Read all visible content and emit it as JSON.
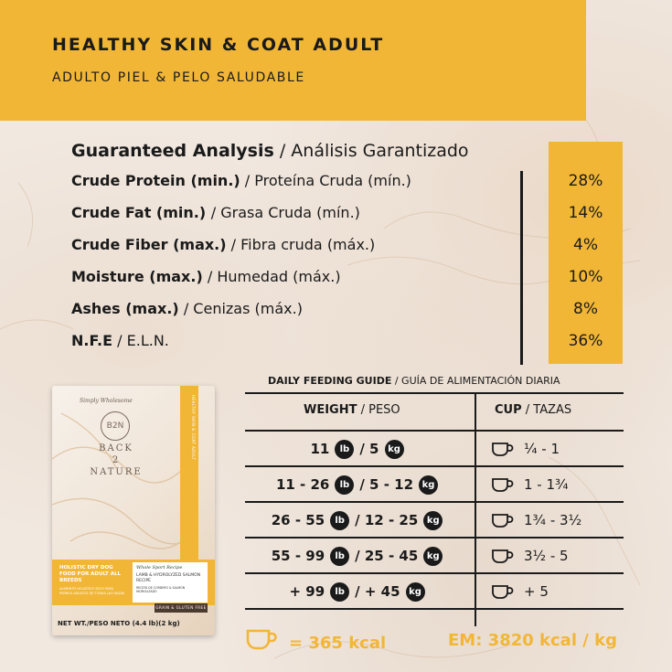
{
  "header": {
    "title": "HEALTHY SKIN & COAT ADULT",
    "subtitle": "ADULTO PIEL & PELO SALUDABLE"
  },
  "analysis": {
    "title_en": "Guaranteed Analysis",
    "title_es": " / Análisis Garantizado",
    "rows": [
      {
        "en": "Crude Protein  (min.)",
        "es": " / Proteína Cruda (mín.)",
        "value": "28%"
      },
      {
        "en": "Crude Fat (min.) ",
        "es": " / Grasa Cruda (mín.)",
        "value": "14%"
      },
      {
        "en": "Crude Fiber (max.)",
        "es": " / Fibra cruda (máx.)",
        "value": "4%"
      },
      {
        "en": "Moisture (max.)",
        "es": " / Humedad (máx.)",
        "value": "10%"
      },
      {
        "en": "Ashes  (max.)",
        "es": " / Cenizas (máx.)",
        "value": "8%"
      },
      {
        "en": "N.F.E",
        "es": " / E.L.N.",
        "value": "36%"
      }
    ]
  },
  "bag": {
    "script": "Simply Wholesome",
    "logo": "B2N",
    "brand_line1": "BACK",
    "brand_line2": "2",
    "brand_line3": "NATURE",
    "side_text": "HEALTHY SKIN & COAT ADULT",
    "band_left": "HOLISTIC DRY DOG FOOD FOR ADULT ALL BREEDS",
    "band_left_es": "ALIMENTO HOLÍSTICO SECO PARA PERROS ADULTOS DE TODAS LAS RAZAS",
    "band_right_script": "Whole Sport Recipe",
    "band_right": "LAMB & HYDROLYZED SALMON RECIPE",
    "band_right_es": "RECETA DE CORDERO & SALMÓN HIDROLIZADO",
    "badge": "GRAIN & GLUTEN FREE",
    "net": "NET WT./PESO NETO (4.4 lb)(2 kg)"
  },
  "feeding": {
    "title_en": "DAILY FEEDING GUIDE",
    "title_es": " / GUÍA DE ALIMENTACIÓN DIARIA",
    "weight_head_en": "WEIGHT",
    "weight_head_es": " / PESO",
    "cup_head_en": "CUP",
    "cup_head_es": " / TAZAS",
    "unit_lb": "lb",
    "unit_kg": "kg",
    "rows": [
      {
        "lb": "11",
        "kg": "/ 5",
        "cups": "¼ - 1"
      },
      {
        "lb": "11 - 26",
        "kg": "/ 5 - 12",
        "cups": "1 - 1¾"
      },
      {
        "lb": "26 - 55",
        "kg": "/ 12 - 25",
        "cups": "1¾ - 3½"
      },
      {
        "lb": "55 - 99",
        "kg": "/ 25 - 45",
        "cups": "3½ - 5"
      },
      {
        "lb": "+ 99",
        "kg": "/ + 45",
        "cups": "+ 5"
      }
    ]
  },
  "footer": {
    "kcal": "= 365 kcal",
    "em": "EM: 3820 kcal / kg"
  },
  "colors": {
    "accent": "#f2b637",
    "text": "#1a1a1a",
    "background": "#f1e8e0"
  }
}
